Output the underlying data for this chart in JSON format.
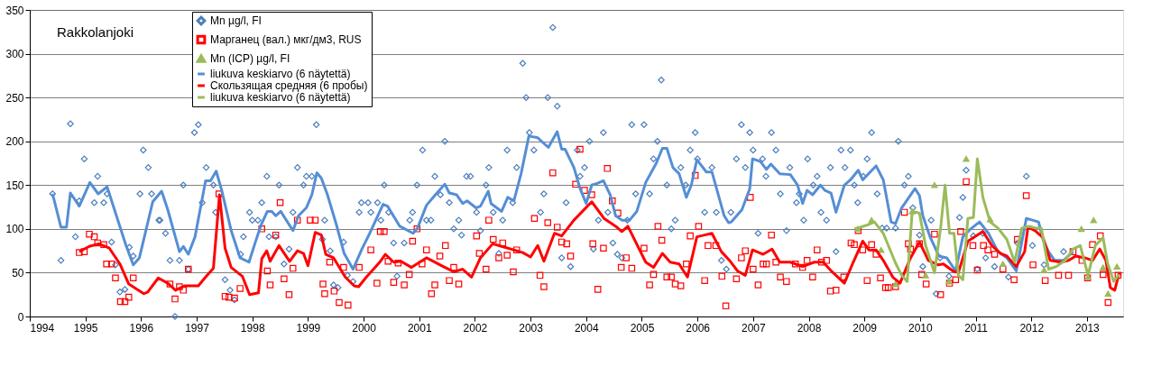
{
  "chart_data": {
    "type": "scatter",
    "title": "Rakkolanjoki",
    "xlim": [
      1994,
      2013.65
    ],
    "xticks": [
      1994,
      1995,
      1996,
      1997,
      1998,
      1999,
      2000,
      2001,
      2002,
      2003,
      2004,
      2005,
      2006,
      2007,
      2008,
      2009,
      2010,
      2011,
      2012,
      2013
    ],
    "ylim": [
      0,
      350
    ],
    "yticks": [
      0,
      50,
      100,
      150,
      200,
      250,
      300,
      350
    ],
    "grid": "y",
    "legend": "top left",
    "series": [
      {
        "name": "Mn µg/l, FI",
        "marker": "diamond",
        "color": "#4a7ebb",
        "x": [
          1994.41,
          1994.56,
          1994.73,
          1994.82,
          1994.89,
          1994.98,
          1995.16,
          1995.22,
          1995.33,
          1995.39,
          1995.47,
          1995.54,
          1995.62,
          1995.71,
          1995.79,
          1995.86,
          1995.98,
          1996.04,
          1996.13,
          1996.19,
          1996.32,
          1996.34,
          1996.44,
          1996.52,
          1996.61,
          1996.69,
          1996.76,
          1996.85,
          1996.96,
          1997.03,
          1997.1,
          1997.17,
          1997.3,
          1997.34,
          1997.51,
          1997.6,
          1997.68,
          1997.79,
          1997.84,
          1997.95,
          1998.0,
          1998.1,
          1998.17,
          1998.26,
          1998.3,
          1998.42,
          1998.48,
          1998.57,
          1998.66,
          1998.73,
          1998.81,
          1998.92,
          1998.97,
          1999.07,
          1999.15,
          1999.26,
          1999.3,
          1999.4,
          1999.46,
          1999.54,
          1999.64,
          1999.71,
          1999.81,
          1999.92,
          1999.96,
          2000.08,
          2000.13,
          2000.25,
          2000.31,
          2000.37,
          2000.45,
          2000.54,
          2000.6,
          2000.73,
          2000.83,
          2000.88,
          2000.96,
          2001.06,
          2001.13,
          2001.21,
          2001.28,
          2001.38,
          2001.46,
          2001.54,
          2001.62,
          2001.71,
          2001.76,
          2001.85,
          2001.92,
          2002.03,
          2002.1,
          2002.2,
          2002.25,
          2002.33,
          2002.43,
          2002.5,
          2002.58,
          2002.68,
          2002.75,
          2002.86,
          2002.92,
          2002.98,
          2003.06,
          2003.18,
          2003.24,
          2003.31,
          2003.4,
          2003.48,
          2003.56,
          2003.64,
          2003.72,
          2003.84,
          2003.89,
          2003.97,
          2004.06,
          2004.13,
          2004.22,
          2004.31,
          2004.39,
          2004.48,
          2004.56,
          2004.64,
          2004.74,
          2004.82,
          2004.89,
          2005.04,
          2005.14,
          2005.21,
          2005.28,
          2005.35,
          2005.45,
          2005.53,
          2005.6,
          2005.7,
          2005.79,
          2005.87,
          2005.96,
          2006.0,
          2006.13,
          2006.26,
          2006.34,
          2006.43,
          2006.52,
          2006.6,
          2006.7,
          2006.79,
          2006.86,
          2006.94,
          2007.0,
          2007.09,
          2007.17,
          2007.23,
          2007.33,
          2007.41,
          2007.49,
          2007.6,
          2007.66,
          2007.78,
          2007.83,
          2007.91,
          2007.98,
          2008.08,
          2008.15,
          2008.22,
          2008.32,
          2008.39,
          2008.49,
          2008.58,
          2008.65,
          2008.75,
          2008.82,
          2008.88,
          2008.98,
          2009.05,
          2009.13,
          2009.23,
          2009.32,
          2009.4,
          2009.56,
          2009.61,
          2009.72,
          2009.79,
          2009.87,
          2009.99,
          2010.05,
          2010.2,
          2010.29,
          2010.36,
          2010.52,
          2010.71,
          2010.77,
          2010.83,
          2010.96,
          2011.03,
          2011.13,
          2011.18,
          2011.34,
          2011.59,
          2011.75,
          2011.91,
          2012.02,
          2012.23,
          2012.58
        ],
        "values": [
          140,
          64,
          220,
          91,
          132,
          180,
          130,
          160,
          130,
          140,
          85,
          59,
          28,
          31,
          79,
          69,
          140,
          190,
          170,
          140,
          110,
          110,
          95,
          64,
          0,
          64,
          150,
          54,
          210,
          219,
          130,
          170,
          150,
          119,
          42,
          30,
          19,
          71,
          91,
          119,
          110,
          110,
          130,
          160,
          91,
          91,
          150,
          60,
          77,
          119,
          170,
          150,
          160,
          160,
          219,
          88,
          110,
          75,
          36,
          33,
          85,
          47,
          40,
          119,
          130,
          130,
          119,
          130,
          110,
          150,
          119,
          84,
          46,
          84,
          110,
          119,
          150,
          190,
          110,
          110,
          160,
          139,
          200,
          130,
          100,
          110,
          93,
          160,
          160,
          119,
          98,
          150,
          170,
          119,
          72,
          110,
          190,
          130,
          170,
          289,
          250,
          210,
          190,
          119,
          140,
          250,
          330,
          240,
          67,
          130,
          57,
          190,
          160,
          170,
          200,
          77,
          110,
          210,
          119,
          84,
          71,
          67,
          110,
          219,
          140,
          219,
          140,
          180,
          200,
          270,
          150,
          100,
          110,
          170,
          150,
          190,
          210,
          180,
          119,
          170,
          119,
          64,
          54,
          119,
          180,
          219,
          170,
          210,
          190,
          95,
          180,
          160,
          210,
          190,
          140,
          98,
          170,
          130,
          140,
          110,
          180,
          150,
          160,
          119,
          110,
          170,
          74,
          190,
          170,
          190,
          150,
          130,
          160,
          180,
          210,
          140,
          101,
          101,
          101,
          200,
          150,
          160,
          124,
          93,
          57,
          110,
          26,
          67,
          46,
          113,
          136,
          167,
          92,
          54,
          95,
          67,
          57,
          45,
          84,
          160,
          81,
          59,
          74
        ]
      },
      {
        "name": "Марганец (вал.) мкг/дм3, RUS",
        "marker": "square",
        "color": "#ff0000",
        "x": [
          1994.89,
          1994.98,
          1995.07,
          1995.16,
          1995.22,
          1995.33,
          1995.38,
          1995.47,
          1995.54,
          1995.63,
          1995.71,
          1995.78,
          1995.86,
          1996.52,
          1996.61,
          1996.69,
          1996.76,
          1996.85,
          1997.4,
          1997.51,
          1997.58,
          1997.68,
          1997.78,
          1998.17,
          1998.27,
          1998.32,
          1998.42,
          1998.5,
          1998.57,
          1998.66,
          1998.73,
          1998.81,
          1999.04,
          1999.13,
          1999.27,
          1999.3,
          1999.39,
          1999.47,
          1999.56,
          1999.64,
          1999.72,
          1999.92,
          2000.13,
          2000.24,
          2000.3,
          2000.37,
          2000.44,
          2000.54,
          2000.62,
          2000.73,
          2000.82,
          2000.88,
          2000.96,
          2001.05,
          2001.13,
          2001.22,
          2001.28,
          2001.37,
          2001.47,
          2001.54,
          2001.62,
          2001.71,
          2002.03,
          2002.08,
          2002.2,
          2002.25,
          2002.33,
          2002.43,
          2002.5,
          2002.58,
          2002.69,
          2002.75,
          2003.07,
          2003.17,
          2003.24,
          2003.31,
          2003.4,
          2003.48,
          2003.56,
          2003.65,
          2003.72,
          2003.81,
          2003.89,
          2003.97,
          2004.1,
          2004.12,
          2004.21,
          2004.31,
          2004.38,
          2004.47,
          2004.57,
          2004.63,
          2004.72,
          2004.82,
          2005.04,
          2005.14,
          2005.21,
          2005.29,
          2005.36,
          2005.45,
          2005.53,
          2005.6,
          2005.7,
          2005.8,
          2005.87,
          2005.96,
          2006.02,
          2006.13,
          2006.19,
          2006.33,
          2006.44,
          2006.51,
          2006.7,
          2006.79,
          2006.86,
          2006.95,
          2007.0,
          2007.09,
          2007.18,
          2007.24,
          2007.33,
          2007.41,
          2007.49,
          2007.6,
          2007.76,
          2007.89,
          2007.97,
          2008.07,
          2008.15,
          2008.23,
          2008.32,
          2008.39,
          2008.49,
          2008.63,
          2008.76,
          2008.82,
          2008.89,
          2008.97,
          2009.05,
          2009.13,
          2009.21,
          2009.29,
          2009.38,
          2009.43,
          2009.56,
          2009.72,
          2009.79,
          2009.83,
          2009.99,
          2010.03,
          2010.11,
          2010.26,
          2010.37,
          2010.53,
          2010.64,
          2010.73,
          2010.83,
          2010.95,
          2011.03,
          2011.14,
          2011.22,
          2011.34,
          2011.49,
          2011.69,
          2011.75,
          2011.91,
          2012.03,
          2012.25,
          2012.49,
          2012.67,
          2012.75,
          2012.91,
          2013.01,
          2013.1,
          2013.24,
          2013.29,
          2013.38,
          2013.56
        ],
        "values": [
          73,
          74,
          94,
          91,
          84,
          82,
          60,
          60,
          44,
          17,
          17,
          22,
          44,
          37,
          20,
          34,
          30,
          54,
          140,
          23,
          22,
          21,
          32,
          100,
          52,
          36,
          93,
          130,
          43,
          25,
          55,
          110,
          110,
          110,
          37,
          26,
          62,
          29,
          16,
          56,
          13,
          56,
          76,
          38,
          97,
          97,
          63,
          39,
          61,
          36,
          48,
          86,
          100,
          60,
          76,
          26,
          36,
          69,
          81,
          41,
          56,
          37,
          92,
          72,
          54,
          110,
          88,
          67,
          84,
          70,
          51,
          76,
          112,
          47,
          34,
          107,
          164,
          102,
          85,
          83,
          69,
          151,
          191,
          144,
          139,
          83,
          31,
          78,
          169,
          132,
          118,
          56,
          67,
          55,
          78,
          36,
          48,
          103,
          87,
          45,
          45,
          37,
          35,
          60,
          92,
          161,
          103,
          41,
          81,
          81,
          46,
          12,
          43,
          67,
          75,
          136,
          54,
          36,
          60,
          60,
          93,
          62,
          45,
          40,
          60,
          56,
          64,
          45,
          76,
          62,
          64,
          29,
          30,
          45,
          84,
          82,
          98,
          76,
          41,
          82,
          71,
          44,
          33,
          33,
          34,
          119,
          83,
          77,
          83,
          48,
          37,
          94,
          25,
          38,
          42,
          97,
          154,
          81,
          53,
          81,
          76,
          71,
          54,
          42,
          88,
          138,
          59,
          41,
          47,
          47,
          74,
          64,
          44,
          82,
          92,
          48,
          16,
          47
        ]
      },
      {
        "name": "Mn (ICP) µg/l, FI",
        "marker": "triangle",
        "color": "#9bbb59",
        "x": [
          2008.88,
          2009.13,
          2009.3,
          2009.56,
          2009.86,
          2010.1,
          2010.26,
          2010.52,
          2010.83,
          2011.26,
          2011.49,
          2012.23,
          2012.9,
          2013.02,
          2013.12,
          2013.29,
          2013.38,
          2013.54
        ],
        "values": [
          100,
          110,
          76,
          37,
          120,
          47,
          150,
          40,
          180,
          111,
          60,
          53,
          100,
          45,
          110,
          56,
          26,
          57
        ]
      },
      {
        "name": "liukuva keskiarvo (6 näytettä)",
        "type": "line",
        "color": "#558ed5",
        "x": [
          1994.41,
          1994.56,
          1994.66,
          1994.73,
          1994.89,
          1995.08,
          1995.23,
          1995.39,
          1995.73,
          1995.86,
          1995.97,
          1996.21,
          1996.37,
          1996.48,
          1996.69,
          1996.76,
          1996.85,
          1996.97,
          1997.16,
          1997.25,
          1997.35,
          1997.45,
          1997.62,
          1997.78,
          1997.94,
          1998.05,
          1998.16,
          1998.27,
          1998.35,
          1998.42,
          1998.51,
          1998.73,
          1998.83,
          1998.97,
          1999.07,
          1999.16,
          1999.24,
          1999.35,
          1999.51,
          1999.65,
          1999.81,
          1999.97,
          2000.11,
          2000.35,
          2000.43,
          2000.65,
          2000.89,
          2000.97,
          2001.13,
          2001.29,
          2001.46,
          2001.54,
          2001.67,
          2001.78,
          2001.86,
          2002.02,
          2002.1,
          2002.24,
          2002.29,
          2002.48,
          2002.59,
          2002.7,
          2002.83,
          2002.97,
          2003.13,
          2003.32,
          2003.48,
          2003.56,
          2003.62,
          2003.78,
          2003.89,
          2004.0,
          2004.1,
          2004.2,
          2004.31,
          2004.43,
          2004.53,
          2004.64,
          2004.78,
          2004.91,
          2005.07,
          2005.26,
          2005.37,
          2005.45,
          2005.56,
          2005.67,
          2005.8,
          2005.89,
          2005.99,
          2006.16,
          2006.26,
          2006.48,
          2006.56,
          2006.61,
          2006.8,
          2006.94,
          2006.99,
          2007.13,
          2007.24,
          2007.32,
          2007.48,
          2007.67,
          2007.8,
          2007.89,
          2007.97,
          2008.07,
          2008.21,
          2008.29,
          2008.4,
          2008.49,
          2008.64,
          2008.75,
          2008.89,
          2008.97,
          2009.21,
          2009.34,
          2009.48,
          2009.56,
          2009.67,
          2009.91,
          2009.99,
          2010.05,
          2010.18,
          2010.34,
          2010.48,
          2010.64,
          2010.77,
          2010.91,
          2011.07,
          2011.23,
          2011.4,
          2011.56,
          2011.73,
          2011.91,
          2012.02,
          2012.13,
          2012.21,
          2012.31,
          2012.42,
          2012.58,
          2012.75
        ],
        "values": [
          140,
          102,
          102,
          141,
          126,
          153,
          140,
          148,
          81,
          59,
          67,
          131,
          143,
          122,
          74,
          80,
          71,
          91,
          155,
          155,
          166,
          144,
          98,
          67,
          62,
          84,
          105,
          120,
          120,
          115,
          120,
          98,
          115,
          124,
          139,
          164,
          158,
          139,
          105,
          72,
          54,
          77,
          95,
          128,
          126,
          103,
          95,
          101,
          127,
          139,
          151,
          141,
          139,
          129,
          132,
          124,
          126,
          143,
          129,
          120,
          136,
          132,
          163,
          206,
          204,
          193,
          211,
          191,
          191,
          170,
          146,
          129,
          150,
          152,
          155,
          139,
          115,
          110,
          110,
          120,
          153,
          175,
          192,
          192,
          170,
          163,
          136,
          150,
          179,
          165,
          165,
          115,
          107,
          108,
          122,
          146,
          180,
          177,
          168,
          174,
          163,
          162,
          150,
          129,
          144,
          139,
          150,
          144,
          141,
          119,
          150,
          156,
          167,
          156,
          172,
          156,
          108,
          106,
          124,
          146,
          138,
          115,
          91,
          69,
          67,
          52,
          91,
          100,
          108,
          95,
          74,
          67,
          52,
          112,
          110,
          108,
          88,
          74,
          64,
          64,
          74
        ]
      },
      {
        "name": "Скользящая средняя (6 пробы)",
        "type": "line",
        "color": "#ff0000",
        "x": [
          1994.89,
          1995.07,
          1995.24,
          1995.43,
          1995.62,
          1995.78,
          1996.05,
          1996.12,
          1996.31,
          1996.48,
          1996.62,
          1996.78,
          1997.03,
          1997.16,
          1997.3,
          1997.41,
          1997.51,
          1997.62,
          1997.82,
          1997.95,
          1998.11,
          1998.17,
          1998.26,
          1998.32,
          1998.48,
          1998.67,
          1998.81,
          1998.92,
          1999.0,
          1999.13,
          1999.24,
          1999.32,
          1999.46,
          1999.67,
          1999.83,
          1999.91,
          2000.05,
          2000.29,
          2000.39,
          2000.54,
          2000.67,
          2000.86,
          2001.13,
          2001.4,
          2001.62,
          2001.78,
          2001.94,
          2002.1,
          2002.32,
          2002.48,
          2002.7,
          2002.86,
          2003.0,
          2003.13,
          2003.24,
          2003.43,
          2003.56,
          2003.78,
          2004.1,
          2004.32,
          2004.53,
          2004.64,
          2004.75,
          2005.07,
          2005.21,
          2005.37,
          2005.51,
          2005.67,
          2005.82,
          2005.99,
          2006.13,
          2006.26,
          2006.43,
          2006.59,
          2006.72,
          2006.86,
          2006.99,
          2007.18,
          2007.34,
          2007.48,
          2007.67,
          2007.89,
          2008.1,
          2008.26,
          2008.42,
          2008.64,
          2008.8,
          2008.97,
          2009.08,
          2009.21,
          2009.34,
          2009.51,
          2009.64,
          2009.83,
          2009.99,
          2010.15,
          2010.32,
          2010.42,
          2010.59,
          2010.69,
          2010.86,
          2011.13,
          2011.29,
          2011.45,
          2011.56,
          2011.73,
          2011.88,
          2011.94,
          2012.07,
          2012.21,
          2012.34,
          2012.53,
          2012.67,
          2012.8,
          2012.96,
          2013.1,
          2013.23,
          2013.34,
          2013.42,
          2013.5,
          2013.58
        ],
        "values": [
          74,
          80,
          83,
          78,
          60,
          37,
          26,
          28,
          44,
          38,
          30,
          35,
          35,
          45,
          55,
          139,
          78,
          56,
          46,
          25,
          27,
          66,
          75,
          63,
          81,
          63,
          75,
          72,
          58,
          96,
          93,
          71,
          67,
          45,
          35,
          34,
          45,
          62,
          71,
          62,
          63,
          56,
          67,
          58,
          51,
          54,
          45,
          67,
          83,
          80,
          76,
          73,
          68,
          81,
          63,
          95,
          92,
          110,
          131,
          112,
          103,
          97,
          103,
          62,
          56,
          72,
          62,
          60,
          45,
          91,
          93,
          95,
          74,
          63,
          52,
          47,
          76,
          71,
          77,
          62,
          62,
          57,
          62,
          62,
          51,
          38,
          62,
          86,
          76,
          76,
          64,
          45,
          38,
          67,
          85,
          64,
          59,
          60,
          52,
          50,
          86,
          97,
          81,
          72,
          69,
          57,
          74,
          102,
          98,
          90,
          64,
          62,
          64,
          69,
          67,
          64,
          77,
          64,
          33,
          30,
          50
        ]
      },
      {
        "name": "liukuva keskiarvo (6 näytettä)",
        "type": "line",
        "color": "#9bbb59",
        "x": [
          2008.83,
          2009.08,
          2009.18,
          2009.34,
          2009.56,
          2009.67,
          2009.77,
          2009.86,
          2009.99,
          2010.1,
          2010.26,
          2010.37,
          2010.45,
          2010.53,
          2010.61,
          2010.69,
          2010.77,
          2010.86,
          2010.96,
          2011.03,
          2011.13,
          2011.26,
          2011.4,
          2011.56,
          2011.7,
          2011.83,
          2011.96,
          2012.07,
          2012.18,
          2012.31,
          2012.45,
          2012.61,
          2012.75,
          2012.88,
          2013.02,
          2013.15,
          2013.29,
          2013.37,
          2013.48,
          2013.58
        ],
        "values": [
          100,
          105,
          108,
          95,
          61,
          47,
          40,
          120,
          118,
          81,
          50,
          101,
          150,
          95,
          95,
          47,
          42,
          112,
          113,
          180,
          136,
          108,
          101,
          88,
          62,
          101,
          103,
          101,
          101,
          54,
          57,
          64,
          77,
          81,
          47,
          81,
          90,
          61,
          40,
          48
        ]
      }
    ]
  }
}
